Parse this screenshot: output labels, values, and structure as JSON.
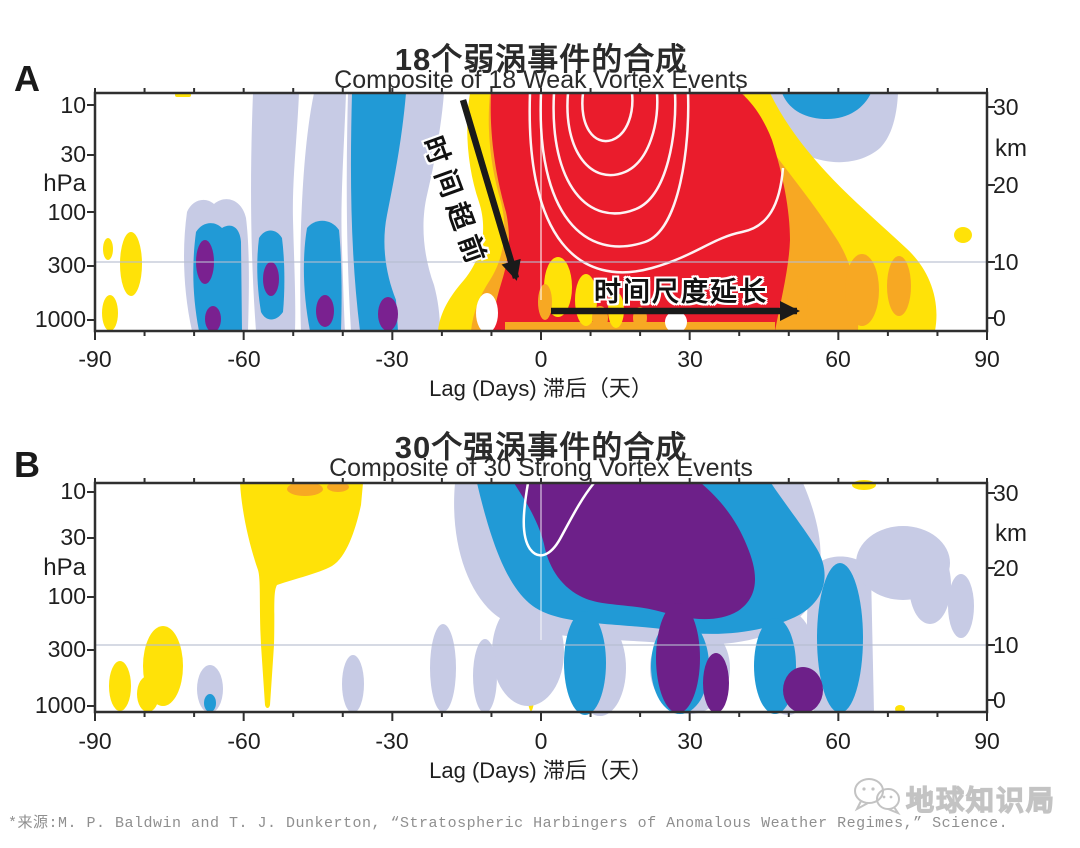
{
  "figure": {
    "panel_a": {
      "label": "A",
      "title_zh": "18个弱涡事件的合成",
      "title_en": "Composite of 18 Weak Vortex Events",
      "annotation_lead": "时间超前",
      "annotation_extend": "时间尺度延长"
    },
    "panel_b": {
      "label": "B",
      "title_zh": "30个强涡事件的合成",
      "title_en": "Composite of 30 Strong Vortex Events"
    },
    "axes": {
      "pressure_unit": "hPa",
      "pressure_ticks": [
        "10",
        "30",
        "100",
        "300",
        "1000"
      ],
      "height_unit": "km",
      "height_ticks": [
        "30",
        "20",
        "10",
        "0"
      ],
      "x_ticks": [
        "-90",
        "-60",
        "-30",
        "0",
        "30",
        "60",
        "90"
      ],
      "x_label": "Lag (Days) 滞后（天）"
    },
    "footer": {
      "source": "*来源:M. P. Baldwin and T. J. Dunkerton, “Stratospheric Harbingers of Anomalous Weather Regimes,” Science.",
      "watermark": "地球知识局"
    },
    "colors": {
      "positive_weak": "#ffe208",
      "positive_mid": "#f7a823",
      "positive_strong": "#ea1c2c",
      "negative_weak": "#c7cbe5",
      "negative_mid": "#219ad6",
      "negative_strong_a": "#7a2190",
      "negative_strong_b": "#6d2089",
      "tropopause_line": "#b6bdd0"
    }
  },
  "chart_data": [
    {
      "type": "contour",
      "panel": "A",
      "title": "18个弱涡事件的合成 / Composite of 18 Weak Vortex Events",
      "x_axis": {
        "label": "Lag (Days) 滞后（天）",
        "range": [
          -90,
          90
        ],
        "ticks": [
          -90,
          -60,
          -30,
          0,
          30,
          60,
          90
        ]
      },
      "y_axis_left": {
        "label": "hPa",
        "ticks": [
          10,
          30,
          100,
          300,
          1000
        ],
        "scale": "log-pressure"
      },
      "y_axis_right": {
        "label": "km",
        "ticks": [
          30,
          20,
          10,
          0
        ]
      },
      "annotations": [
        {
          "text": "时间超前",
          "arrow": "diagonal, pointing down-right from 10 hPa near lag -15 to ~500 hPa near lag -5"
        },
        {
          "text": "时间尺度延长",
          "arrow": "horizontal, pointing right near surface from lag ~0 to lag ~55"
        }
      ],
      "regions": [
        {
          "sign": "positive-strong",
          "color": "red",
          "extent": "lag ~0 to 40 filling stratosphere 10-100 hPa, descending and persisting to lag ~47 at 1000 hPa; white nested contour lines inside core near lag 5-30"
        },
        {
          "sign": "positive-weak",
          "color": "yellow/orange fringe",
          "extent": "sloping band descending to the right, reaching lag ~78 near the surface; orange blobs embedded near surface lag 50-75"
        },
        {
          "sign": "negative",
          "color": "lavender/blue columns with purple cores",
          "extent": "lag -65 to -25, mainly 100-1000 hPa, some bands reaching 10 hPa"
        },
        {
          "sign": "negative",
          "color": "blue patch with lavender fringe",
          "extent": "lag 42-68 near 10 hPa (top right)"
        }
      ]
    },
    {
      "type": "contour",
      "panel": "B",
      "title": "30个强涡事件的合成 / Composite of 30 Strong Vortex Events",
      "x_axis": {
        "label": "Lag (Days) 滞后（天）",
        "range": [
          -90,
          90
        ],
        "ticks": [
          -90,
          -60,
          -30,
          0,
          30,
          60,
          90
        ]
      },
      "y_axis_left": {
        "label": "hPa",
        "ticks": [
          10,
          30,
          100,
          300,
          1000
        ],
        "scale": "log-pressure"
      },
      "y_axis_right": {
        "label": "km",
        "ticks": [
          30,
          20,
          10,
          0
        ]
      },
      "annotations": [],
      "regions": [
        {
          "sign": "negative-strong",
          "color": "purple core with white contour line",
          "extent": "lag ~-5 to 32 at 10 hPa widening to lag 45 in mid-stratosphere, descending; purple columns reach surface near lags 25-32, 35-38, 48-57"
        },
        {
          "sign": "negative",
          "color": "blue/lavender surround",
          "extent": "descending envelope from lag ~-13 at top to lag ~80 at 5-15 km; columns to the surface lag 5-67"
        },
        {
          "sign": "positive-weak",
          "color": "yellow with orange patches",
          "extent": "lag -61 to -36 in upper stratosphere with a thin spike descending to the surface near lag -55; small yellow spots near surface lags -87, -78, -2"
        }
      ]
    }
  ]
}
